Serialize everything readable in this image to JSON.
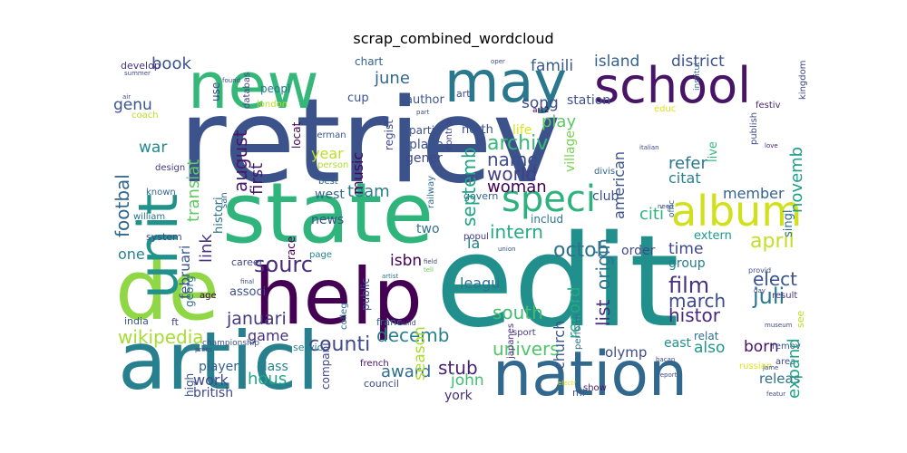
{
  "figure": {
    "title": "scrap_combined_wordcloud"
  },
  "wordcloud": {
    "words": [
      {
        "text": "retriev",
        "color": "#3b528b"
      },
      {
        "text": "edit",
        "color": "#21908d"
      },
      {
        "text": "state",
        "color": "#2fb47c"
      },
      {
        "text": "articl",
        "color": "#27808e"
      },
      {
        "text": "nation",
        "color": "#31688e"
      },
      {
        "text": "de",
        "color": "#8fd744"
      },
      {
        "text": "help",
        "color": "#440154"
      },
      {
        "text": "new",
        "color": "#35b779"
      },
      {
        "text": "may",
        "color": "#2a788e"
      },
      {
        "text": "school",
        "color": "#481467"
      },
      {
        "text": "unit",
        "color": "#21918c"
      },
      {
        "text": "album",
        "color": "#d0e11c"
      },
      {
        "text": "speci",
        "color": "#2db27d"
      },
      {
        "text": "wikipedia",
        "color": "#a8db34"
      },
      {
        "text": "counti",
        "color": "#3e4989"
      },
      {
        "text": "sourc",
        "color": "#472d7b"
      },
      {
        "text": "film",
        "color": "#46337e"
      },
      {
        "text": "origin",
        "color": "#2c728e"
      },
      {
        "text": "octob",
        "color": "#2c718e"
      },
      {
        "text": "archiv",
        "color": "#38b977"
      },
      {
        "text": "name",
        "color": "#3d4e8a"
      },
      {
        "text": "world",
        "color": "#433e85"
      },
      {
        "text": "septemb",
        "color": "#20a486"
      },
      {
        "text": "intern",
        "color": "#25ac82"
      },
      {
        "text": "august",
        "color": "#48186a"
      },
      {
        "text": "juli",
        "color": "#2a788e"
      },
      {
        "text": "elect",
        "color": "#3a538b"
      },
      {
        "text": "expand",
        "color": "#20a386"
      },
      {
        "text": "histor",
        "color": "#482878"
      },
      {
        "text": "march",
        "color": "#3e4a89"
      },
      {
        "text": "list",
        "color": "#46307e"
      },
      {
        "text": "record",
        "color": "#23a983"
      },
      {
        "text": "novemb",
        "color": "#1f9e89"
      },
      {
        "text": "april",
        "color": "#c2df23"
      },
      {
        "text": "decemb",
        "color": "#277f8e"
      },
      {
        "text": "januari",
        "color": "#443a83"
      },
      {
        "text": "south",
        "color": "#42be71"
      },
      {
        "text": "univers",
        "color": "#52c569"
      },
      {
        "text": "stub",
        "color": "#482173"
      },
      {
        "text": "award",
        "color": "#2e6f8e"
      },
      {
        "text": "season",
        "color": "#addc30"
      },
      {
        "text": "footbal",
        "color": "#31688e"
      },
      {
        "text": "book",
        "color": "#3b528b"
      },
      {
        "text": "famili",
        "color": "#38598c"
      },
      {
        "text": "island",
        "color": "#34618d"
      },
      {
        "text": "district",
        "color": "#3b528b"
      },
      {
        "text": "june",
        "color": "#31688e"
      },
      {
        "text": "song",
        "color": "#3e4c8a"
      },
      {
        "text": "play",
        "color": "#5cc863"
      },
      {
        "text": "genu",
        "color": "#3a548c"
      },
      {
        "text": "war",
        "color": "#23898e"
      },
      {
        "text": "transiat",
        "color": "#5ec962"
      },
      {
        "text": "februari",
        "color": "#39568c"
      },
      {
        "text": "link",
        "color": "#46337e"
      },
      {
        "text": "first",
        "color": "#48186a"
      },
      {
        "text": "team",
        "color": "#287c8e"
      },
      {
        "text": "music",
        "color": "#46085c"
      },
      {
        "text": "year",
        "color": "#bddf26"
      },
      {
        "text": "woman",
        "color": "#440154"
      },
      {
        "text": "american",
        "color": "#3b528b"
      },
      {
        "text": "refer",
        "color": "#2a788e"
      },
      {
        "text": "citi",
        "color": "#2fb47c"
      },
      {
        "text": "member",
        "color": "#33638d"
      },
      {
        "text": "time",
        "color": "#3f4788"
      },
      {
        "text": "born",
        "color": "#471063"
      },
      {
        "text": "also",
        "color": "#1f958b"
      },
      {
        "text": "game",
        "color": "#46337e"
      },
      {
        "text": "hous",
        "color": "#22a785"
      },
      {
        "text": "work",
        "color": "#3f4889"
      },
      {
        "text": "john",
        "color": "#40bd72"
      },
      {
        "text": "one",
        "color": "#26818e"
      },
      {
        "text": "isbn",
        "color": "#440154"
      },
      {
        "text": "la",
        "color": "#277f8e"
      },
      {
        "text": "two",
        "color": "#2c728e"
      },
      {
        "text": "news",
        "color": "#3b528b"
      },
      {
        "text": "west",
        "color": "#31688e"
      },
      {
        "text": "citat",
        "color": "#26828e"
      },
      {
        "text": "club",
        "color": "#3c508b"
      },
      {
        "text": "group",
        "color": "#287d8e"
      },
      {
        "text": "extern",
        "color": "#1f998a"
      },
      {
        "text": "order",
        "color": "#3e4a89"
      },
      {
        "text": "village",
        "color": "#7ad151"
      },
      {
        "text": "histori",
        "color": "#2c728e"
      },
      {
        "text": "town",
        "color": "#31688e"
      },
      {
        "text": "leagu",
        "color": "#2c738e"
      },
      {
        "text": "church",
        "color": "#39568c"
      },
      {
        "text": "york",
        "color": "#472c7a"
      },
      {
        "text": "east",
        "color": "#20928c"
      },
      {
        "text": "releas",
        "color": "#2d708e"
      },
      {
        "text": "class",
        "color": "#25848e"
      },
      {
        "text": "player",
        "color": "#32648e"
      },
      {
        "text": "british",
        "color": "#3f4788"
      },
      {
        "text": "singl",
        "color": "#2e6e8e"
      },
      {
        "text": "live",
        "color": "#35b779"
      },
      {
        "text": "place",
        "color": "#3a548c"
      },
      {
        "text": "gener",
        "color": "#3f4889"
      },
      {
        "text": "north",
        "color": "#3b528b"
      },
      {
        "text": "life",
        "color": "#dde318"
      },
      {
        "text": "station",
        "color": "#3b528b"
      },
      {
        "text": "chart",
        "color": "#33638d"
      },
      {
        "text": "author",
        "color": "#39568c"
      },
      {
        "text": "art",
        "color": "#3d4e8a"
      },
      {
        "text": "peopl",
        "color": "#2a788e"
      },
      {
        "text": "cup",
        "color": "#39558c"
      },
      {
        "text": "use",
        "color": "#3f4788"
      },
      {
        "text": "develop",
        "color": "#46317e"
      },
      {
        "text": "coach",
        "color": "#b5de2b"
      },
      {
        "text": "london",
        "color": "#bddf26"
      },
      {
        "text": "system",
        "color": "#3e4a89"
      },
      {
        "text": "william",
        "color": "#2c718e"
      },
      {
        "text": "known",
        "color": "#31688e"
      },
      {
        "text": "design",
        "color": "#453882"
      },
      {
        "text": "san",
        "color": "#31688e"
      },
      {
        "text": "german",
        "color": "#39568c"
      },
      {
        "text": "person",
        "color": "#b0dd2f"
      },
      {
        "text": "best",
        "color": "#31688e"
      },
      {
        "text": "page",
        "color": "#26828e"
      },
      {
        "text": "race",
        "color": "#440154"
      },
      {
        "text": "career",
        "color": "#3f4889"
      },
      {
        "text": "georg",
        "color": "#2e6f8e"
      },
      {
        "text": "age",
        "color": "#440154"
      },
      {
        "text": "associ",
        "color": "#3b528b"
      },
      {
        "text": "india",
        "color": "#3b528b"
      },
      {
        "text": "ft",
        "color": "#3e4989"
      },
      {
        "text": "franc",
        "color": "#31688e"
      },
      {
        "text": "servic",
        "color": "#26828e"
      },
      {
        "text": "high",
        "color": "#3b528b"
      },
      {
        "text": "compani",
        "color": "#414487"
      },
      {
        "text": "council",
        "color": "#3f4889"
      },
      {
        "text": "french",
        "color": "#471164"
      },
      {
        "text": "olymp",
        "color": "#3e4a89"
      },
      {
        "text": "mi",
        "color": "#3b528b"
      },
      {
        "text": "seri",
        "color": "#31688e"
      },
      {
        "text": "show",
        "color": "#481a6c"
      },
      {
        "text": "govern",
        "color": "#33638d"
      },
      {
        "text": "includ",
        "color": "#2b748e"
      },
      {
        "text": "popul",
        "color": "#453882"
      },
      {
        "text": "public",
        "color": "#3b528b"
      },
      {
        "text": "colleg",
        "color": "#2f6c8e"
      },
      {
        "text": "japanes",
        "color": "#472d7b"
      },
      {
        "text": "sport",
        "color": "#433e85"
      },
      {
        "text": "perform",
        "color": "#2c728e"
      },
      {
        "text": "relat",
        "color": "#2e6e8e"
      },
      {
        "text": "russian",
        "color": "#dde318"
      },
      {
        "text": "remov",
        "color": "#3b528b"
      },
      {
        "text": "area",
        "color": "#3e4a89"
      },
      {
        "text": "see",
        "color": "#bddf26"
      },
      {
        "text": "result",
        "color": "#46317e"
      },
      {
        "text": "provid",
        "color": "#3b528b"
      },
      {
        "text": "publish",
        "color": "#3e4989"
      },
      {
        "text": "festiv",
        "color": "#482475"
      },
      {
        "text": "kingdom",
        "color": "#3f4889"
      },
      {
        "text": "educ",
        "color": "#dde318"
      },
      {
        "text": "control",
        "color": "#414487"
      },
      {
        "text": "railway",
        "color": "#2e6e8e"
      },
      {
        "text": "locat",
        "color": "#440154"
      },
      {
        "text": "regist",
        "color": "#3e4a89"
      },
      {
        "text": "parti",
        "color": "#3b528b"
      },
      {
        "text": "databas",
        "color": "#414487"
      },
      {
        "text": "art2",
        "color": "#440154"
      },
      {
        "text": "park",
        "color": "#433e85"
      },
      {
        "text": "part",
        "color": "#3e4a89"
      },
      {
        "text": "italian",
        "color": "#3e4a89"
      },
      {
        "text": "institut",
        "color": "#31688e"
      },
      {
        "text": "divis",
        "color": "#31688e"
      },
      {
        "text": "offic",
        "color": "#31688e"
      },
      {
        "text": "love",
        "color": "#482475"
      },
      {
        "text": "artist",
        "color": "#2e6e8e"
      },
      {
        "text": "tell",
        "color": "#6ccd5a"
      },
      {
        "text": "union",
        "color": "#3b528b"
      },
      {
        "text": "field",
        "color": "#3e4a89"
      },
      {
        "text": "press",
        "color": "#3e4a89"
      },
      {
        "text": "final",
        "color": "#3e4a89"
      },
      {
        "text": "championship",
        "color": "#3b528b"
      },
      {
        "text": "build",
        "color": "#3e4a89"
      },
      {
        "text": "common",
        "color": "#dde318"
      },
      {
        "text": "oper",
        "color": "#3e4a89"
      },
      {
        "text": "day",
        "color": "#3e4a89"
      },
      {
        "text": "report",
        "color": "#3e4a89"
      },
      {
        "text": "featur",
        "color": "#3e4a89"
      },
      {
        "text": "jame",
        "color": "#3e4a89"
      },
      {
        "text": "museum",
        "color": "#3e4a89"
      },
      {
        "text": "electr",
        "color": "#dde318"
      },
      {
        "text": "bacan",
        "color": "#3e4a89"
      },
      {
        "text": "summer",
        "color": "#3e4a89"
      },
      {
        "text": "air",
        "color": "#3e4a89"
      },
      {
        "text": "found",
        "color": "#3e4a89"
      },
      {
        "text": "need",
        "color": "#3e4a89"
      },
      {
        "text": "fc",
        "color": "#3e4a89"
      },
      {
        "text": "act",
        "color": "#3e4a89"
      }
    ]
  }
}
